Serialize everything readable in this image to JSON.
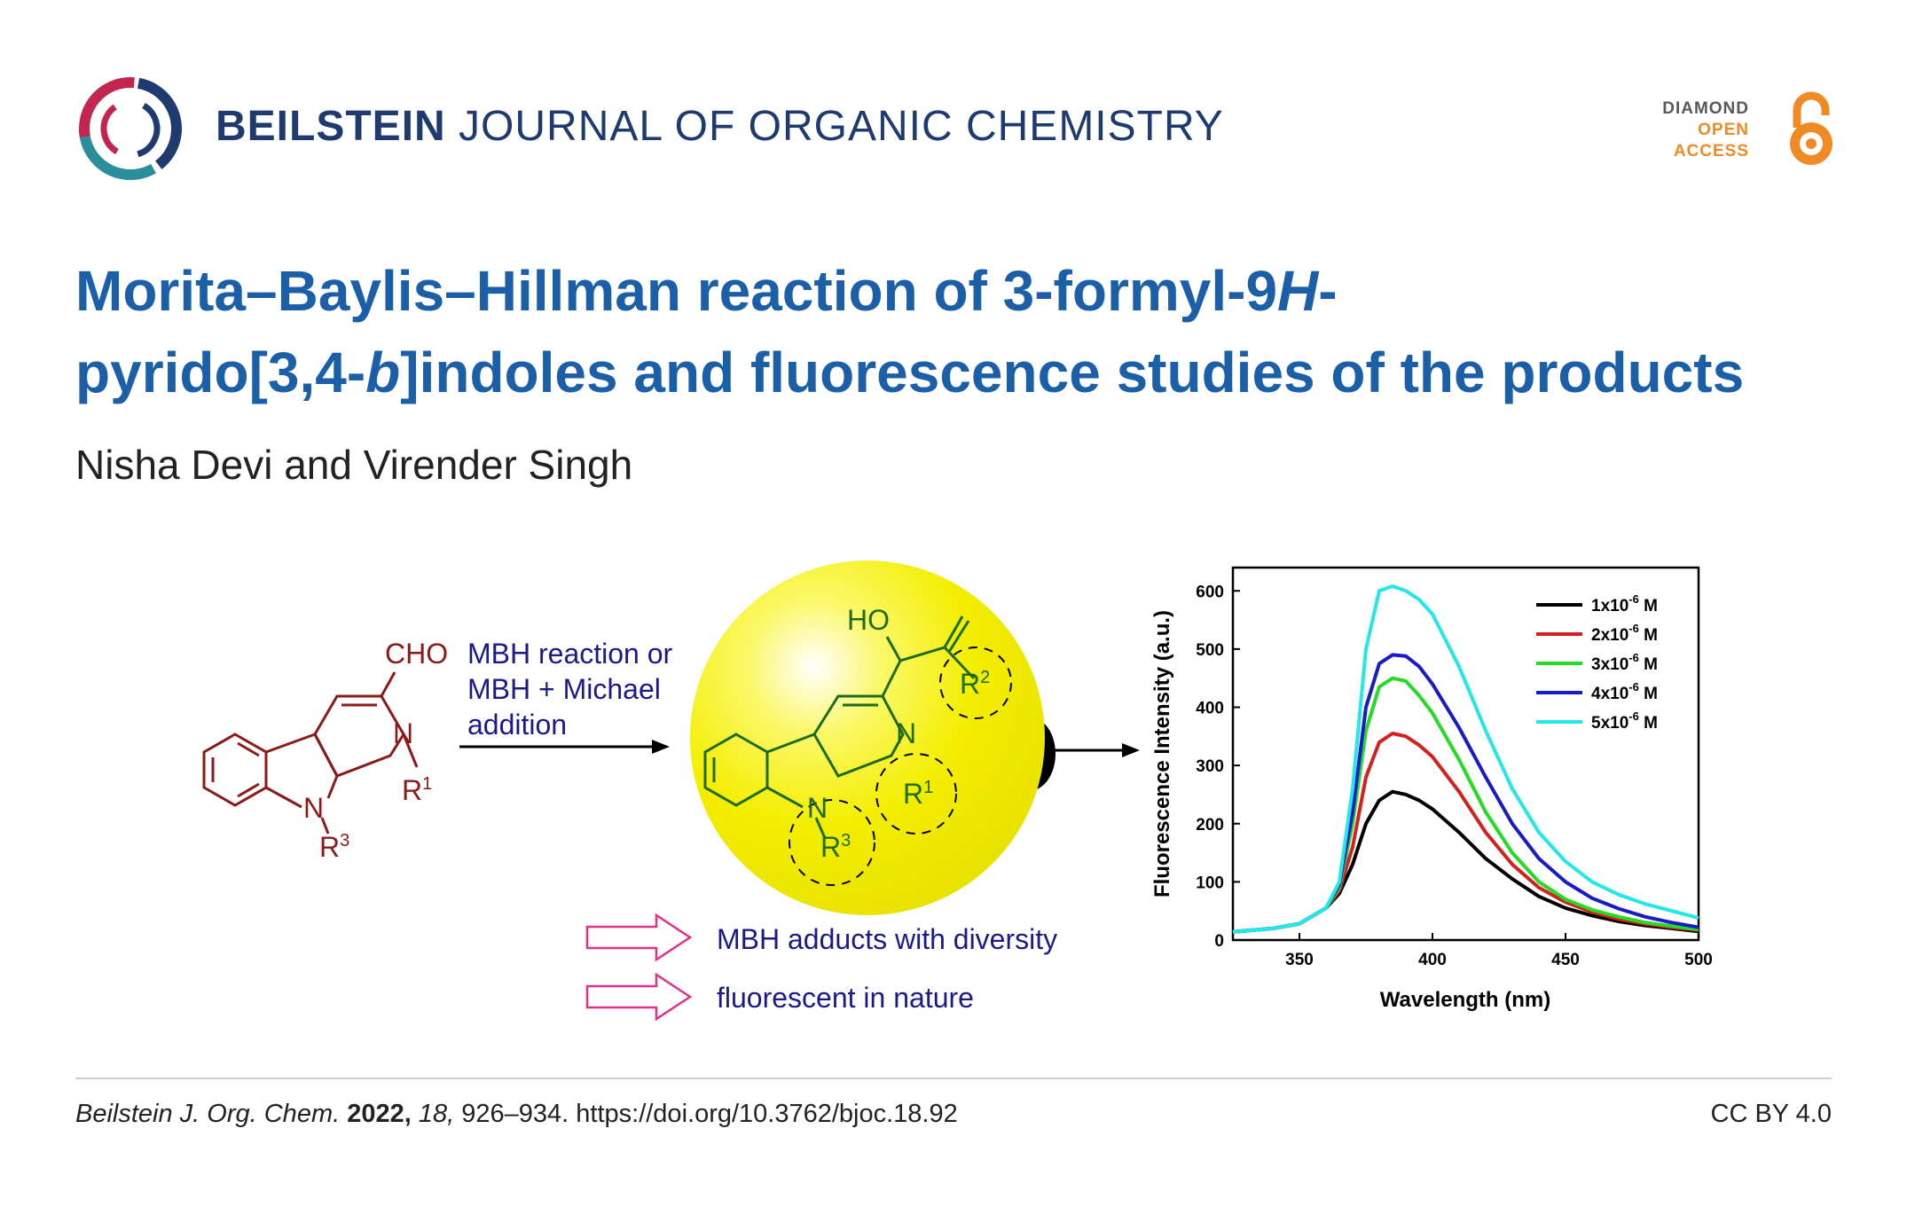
{
  "journal": {
    "bold": "BEILSTEIN",
    "rest": "JOURNAL OF ORGANIC CHEMISTRY"
  },
  "open_access": {
    "line1": "DIAMOND",
    "line2": "OPEN",
    "line3": "ACCESS",
    "icon": "open-lock-icon"
  },
  "article": {
    "title_line1_a": "Morita–Baylis–Hillman reaction of 3-formyl-9",
    "title_line1_italic": "H",
    "title_line1_b": "-",
    "title_line2_a": "pyrido[3,4-",
    "title_line2_italic": "b",
    "title_line2_b": "]indoles and fluorescence studies of the products",
    "authors": "Nisha Devi and Virender Singh"
  },
  "scheme": {
    "reactant_cho": "CHO",
    "reactant_n": "N",
    "reactant_r1": "R",
    "reactant_r1_sup": "1",
    "reactant_nr": "N",
    "reactant_r3": "R",
    "reactant_r3_sup": "3",
    "arrow_label_1": "MBH reaction or",
    "arrow_label_2": "MBH + Michael",
    "arrow_label_3": "addition",
    "product_ho": "HO",
    "product_r2": "R",
    "product_r2_sup": "2",
    "product_n": "N",
    "product_r1": "R",
    "product_r1_sup": "1",
    "product_nr": "N",
    "product_r3": "R",
    "product_r3_sup": "3",
    "bullet_1": "MBH adducts with diversity",
    "bullet_2": "fluorescent in nature",
    "colors": {
      "reactant": "#8b1a1a",
      "product": "#1e6b1e",
      "label": "#1a1a8c",
      "highlight": "#f5f200",
      "arrow_outline": "#e0338c"
    }
  },
  "chart_data": {
    "type": "line",
    "xlabel": "Wavelength (nm)",
    "ylabel": "Fluorescence Intensity (a.u.)",
    "xlim": [
      325,
      500
    ],
    "ylim": [
      0,
      640
    ],
    "x_ticks": [
      "350",
      "400",
      "450",
      "500"
    ],
    "y_ticks": [
      "0",
      "100",
      "200",
      "300",
      "400",
      "500",
      "600"
    ],
    "legend_placement": "top-right",
    "x": [
      325,
      340,
      350,
      360,
      365,
      370,
      375,
      380,
      385,
      390,
      395,
      400,
      410,
      420,
      430,
      440,
      450,
      460,
      470,
      480,
      490,
      500
    ],
    "series": [
      {
        "name": "1x10",
        "exp": "-6",
        "unit": "M",
        "color": "#000000",
        "values": [
          14,
          20,
          28,
          55,
          80,
          130,
          200,
          240,
          255,
          250,
          240,
          225,
          185,
          140,
          105,
          75,
          55,
          42,
          32,
          25,
          20,
          15
        ]
      },
      {
        "name": "2x10",
        "exp": "-6",
        "unit": "M",
        "color": "#d62020",
        "values": [
          14,
          20,
          28,
          55,
          85,
          160,
          280,
          340,
          355,
          350,
          335,
          315,
          255,
          185,
          130,
          90,
          65,
          48,
          36,
          28,
          22,
          17
        ]
      },
      {
        "name": "3x10",
        "exp": "-6",
        "unit": "M",
        "color": "#22dd22",
        "values": [
          14,
          20,
          28,
          55,
          90,
          200,
          360,
          435,
          450,
          445,
          420,
          390,
          310,
          220,
          150,
          100,
          70,
          52,
          40,
          30,
          24,
          18
        ]
      },
      {
        "name": "4x10",
        "exp": "-6",
        "unit": "M",
        "color": "#1a1ac8",
        "values": [
          14,
          20,
          28,
          55,
          95,
          220,
          400,
          475,
          490,
          488,
          470,
          440,
          365,
          280,
          200,
          140,
          100,
          72,
          54,
          40,
          30,
          22
        ]
      },
      {
        "name": "5x10",
        "exp": "-6",
        "unit": "M",
        "color": "#22e8e8",
        "values": [
          14,
          20,
          28,
          55,
          100,
          260,
          500,
          600,
          608,
          600,
          585,
          560,
          470,
          360,
          260,
          185,
          135,
          100,
          78,
          62,
          50,
          38
        ]
      }
    ]
  },
  "footer": {
    "journal_abbr": "Beilstein J. Org. Chem.",
    "year": "2022,",
    "volume": "18,",
    "pages_doi": "926–934. https://doi.org/10.3762/bjoc.18.92",
    "license": "CC BY 4.0"
  }
}
